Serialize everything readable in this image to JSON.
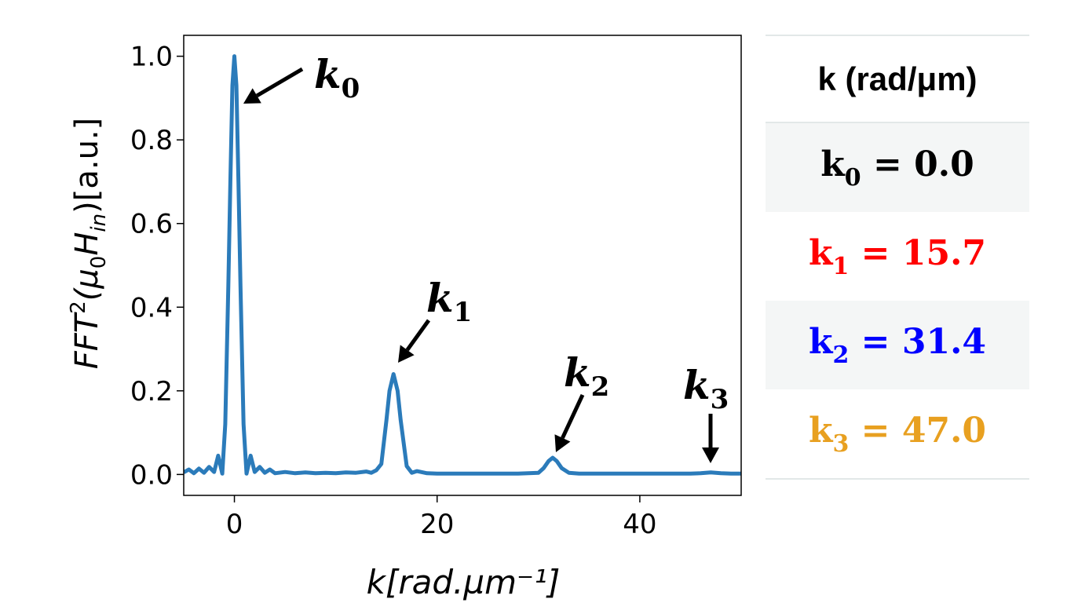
{
  "chart_data": {
    "type": "line",
    "title": "",
    "xlabel": "k[rad.µm⁻¹]",
    "ylabel_parts": {
      "main": "FFT",
      "sq": "2",
      "arg_open": "(μ",
      "arg_sub0": "0",
      "arg_H": "H",
      "arg_sub_in": "in",
      "arg_close": ")[a.u.]"
    },
    "xlim": [
      -5,
      50
    ],
    "ylim": [
      -0.05,
      1.05
    ],
    "xticks": [
      "0",
      "20",
      "40"
    ],
    "yticks": [
      "0.0",
      "0.2",
      "0.4",
      "0.6",
      "0.8",
      "1.0"
    ],
    "grid": false,
    "series_color": "#2b7bba",
    "peaks": [
      {
        "label": "k",
        "sub": "0",
        "x": 0.0,
        "y": 1.0
      },
      {
        "label": "k",
        "sub": "1",
        "x": 15.7,
        "y": 0.24
      },
      {
        "label": "k",
        "sub": "2",
        "x": 31.4,
        "y": 0.04
      },
      {
        "label": "k",
        "sub": "3",
        "x": 47.0,
        "y": 0.005
      }
    ],
    "x": [
      -5,
      -4.5,
      -4,
      -3.5,
      -3,
      -2.5,
      -2,
      -1.6,
      -1.2,
      -0.9,
      -0.6,
      -0.4,
      -0.2,
      0,
      0.2,
      0.4,
      0.6,
      0.9,
      1.2,
      1.6,
      2,
      2.5,
      3,
      3.5,
      4,
      5,
      6,
      7,
      8,
      9,
      10,
      11,
      12,
      13,
      13.5,
      14,
      14.5,
      15,
      15.3,
      15.7,
      16.1,
      16.4,
      17,
      17.5,
      18,
      19,
      20,
      22,
      24,
      26,
      28,
      29,
      30,
      30.5,
      31,
      31.4,
      31.8,
      32.3,
      33,
      34,
      36,
      38,
      40,
      42,
      44,
      45,
      46,
      46.5,
      47,
      47.5,
      48,
      49,
      50
    ],
    "y": [
      0.005,
      0.012,
      0.003,
      0.014,
      0.004,
      0.018,
      0.006,
      0.045,
      0.002,
      0.12,
      0.45,
      0.7,
      0.93,
      1.0,
      0.93,
      0.7,
      0.45,
      0.12,
      0.002,
      0.045,
      0.006,
      0.018,
      0.004,
      0.012,
      0.003,
      0.006,
      0.003,
      0.005,
      0.003,
      0.004,
      0.003,
      0.005,
      0.004,
      0.007,
      0.004,
      0.01,
      0.025,
      0.13,
      0.2,
      0.24,
      0.2,
      0.13,
      0.02,
      0.004,
      0.008,
      0.003,
      0.002,
      0.002,
      0.002,
      0.002,
      0.002,
      0.003,
      0.004,
      0.015,
      0.032,
      0.04,
      0.032,
      0.015,
      0.004,
      0.002,
      0.002,
      0.002,
      0.002,
      0.002,
      0.002,
      0.002,
      0.003,
      0.004,
      0.005,
      0.004,
      0.003,
      0.002,
      0.002
    ]
  },
  "table": {
    "header": "k (rad/μm)",
    "rows": [
      {
        "k": "k",
        "sub": "0",
        "eq": "= 0.0",
        "color": "#000000"
      },
      {
        "k": "k",
        "sub": "1",
        "eq": "= 15.7",
        "color": "#ff0000"
      },
      {
        "k": "k",
        "sub": "2",
        "eq": "= 31.4",
        "color": "#0000ff"
      },
      {
        "k": "k",
        "sub": "3",
        "eq": "= 47.0",
        "color": "#e8a020"
      }
    ]
  }
}
